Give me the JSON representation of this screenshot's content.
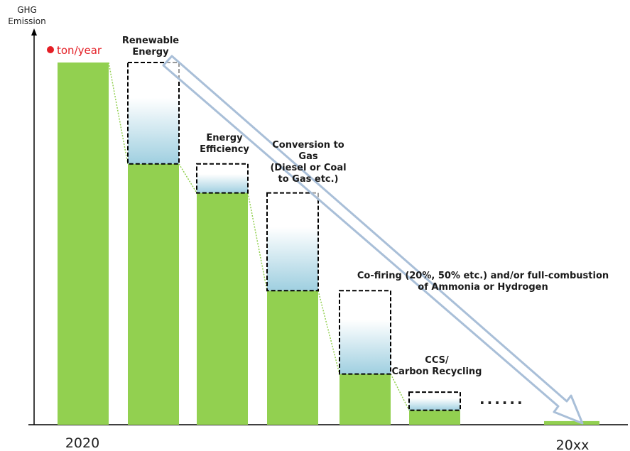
{
  "chart_data": {
    "type": "bar",
    "ylabel": [
      "GHG",
      "Emission"
    ],
    "unit_label": "ton/year",
    "x_start_label": "2020",
    "x_end_label": "20xx",
    "continuation": "......",
    "base_bar_value": 100,
    "ylim": [
      0,
      100
    ],
    "steps": [
      {
        "label_lines": [
          "Renewable",
          "Energy"
        ],
        "before": 100,
        "after": 72
      },
      {
        "label_lines": [
          "Energy",
          "Efficiency"
        ],
        "before": 72,
        "after": 64
      },
      {
        "label_lines": [
          "Conversion to",
          "Gas",
          "(Diesel or Coal",
          "to Gas etc.)"
        ],
        "before": 64,
        "after": 37
      },
      {
        "label_lines": [
          "Co-firing (20%, 50% etc.) and/or full-combustion",
          "of Ammonia or Hydrogen"
        ],
        "before": 37,
        "after": 14
      },
      {
        "label_lines": [
          "CCS/",
          "Carbon Recycling"
        ],
        "before": 9,
        "after": 4
      }
    ],
    "final_value": 1,
    "colors": {
      "bar": "#92d050",
      "reduction_top": "#ffffff",
      "reduction_bottom": "#9fcfe0",
      "dashed_box": "#000000",
      "connector": "#92d050",
      "arrow_fill": "#ffffff",
      "arrow_stroke": "#a9bfd8",
      "unit_dot": "#e41e25"
    }
  }
}
